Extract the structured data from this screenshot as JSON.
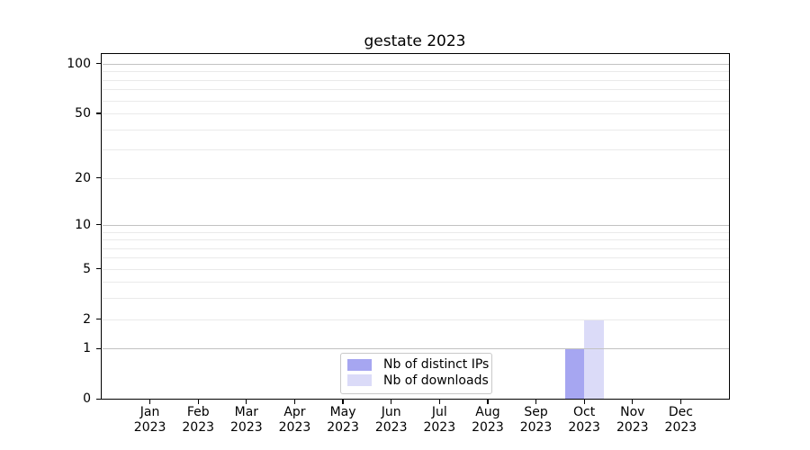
{
  "title": "gestate 2023",
  "colors": {
    "background": "#ffffff",
    "bar_distinct_ips": "#a6a6f1",
    "bar_downloads": "#dbdbf8",
    "grid_major": "#c2c2c2",
    "grid_minor": "#eaeaea",
    "spine": "#000000",
    "text": "#000000",
    "legend_border": "#c9c9c9"
  },
  "chart_data": {
    "type": "bar",
    "title": "gestate 2023",
    "categories": [
      "Jan",
      "Feb",
      "Mar",
      "Apr",
      "May",
      "Jun",
      "Jul",
      "Aug",
      "Sep",
      "Oct",
      "Nov",
      "Dec"
    ],
    "year_label": "2023",
    "series": [
      {
        "name": "Nb of distinct IPs",
        "color": "#a6a6f1",
        "values": [
          0,
          0,
          0,
          0,
          0,
          0,
          0,
          0,
          0,
          1,
          0,
          0
        ]
      },
      {
        "name": "Nb of downloads",
        "color": "#dbdbf8",
        "values": [
          0,
          0,
          0,
          0,
          0,
          0,
          0,
          0,
          0,
          2,
          0,
          0
        ]
      }
    ],
    "yscale": "log1p",
    "ylim": [
      0,
      114
    ],
    "y_major_ticks": [
      0,
      1,
      2,
      5,
      10,
      20,
      50,
      100
    ],
    "y_decade_gridlines": [
      1,
      10,
      100
    ],
    "y_minor_gridlines": [
      3,
      4,
      6,
      7,
      8,
      9,
      30,
      40,
      60,
      70,
      80,
      90
    ],
    "grid": true,
    "legend_position": "lower center",
    "xlabel": "",
    "ylabel": ""
  }
}
